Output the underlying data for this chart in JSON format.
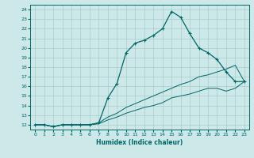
{
  "xlabel": "Humidex (Indice chaleur)",
  "bg_color": "#cce8e8",
  "line_color": "#006666",
  "grid_color": "#aacccc",
  "xlim": [
    -0.5,
    23.5
  ],
  "ylim": [
    11.5,
    24.5
  ],
  "xticks": [
    0,
    1,
    2,
    3,
    4,
    5,
    6,
    7,
    8,
    9,
    10,
    11,
    12,
    13,
    14,
    15,
    16,
    17,
    18,
    19,
    20,
    21,
    22,
    23
  ],
  "yticks": [
    12,
    13,
    14,
    15,
    16,
    17,
    18,
    19,
    20,
    21,
    22,
    23,
    24
  ],
  "line1_x": [
    0,
    1,
    2,
    3,
    4,
    5,
    6,
    7,
    8,
    9,
    10,
    11,
    12,
    13,
    14,
    15,
    16,
    17,
    18,
    19,
    20,
    21,
    22,
    23
  ],
  "line1_y": [
    12,
    12,
    11.8,
    12,
    12,
    12,
    12,
    12.2,
    14.8,
    16.3,
    19.5,
    20.5,
    20.8,
    21.3,
    22.0,
    23.8,
    23.2,
    21.5,
    20.0,
    19.5,
    18.8,
    17.5,
    16.5,
    16.5
  ],
  "line2_x": [
    0,
    1,
    2,
    3,
    4,
    5,
    6,
    7,
    8,
    9,
    10,
    11,
    12,
    13,
    14,
    15,
    16,
    17,
    18,
    19,
    20,
    21,
    22,
    23
  ],
  "line2_y": [
    12,
    12,
    11.8,
    12,
    12,
    12,
    12,
    12.2,
    12.8,
    13.2,
    13.8,
    14.2,
    14.6,
    15.0,
    15.4,
    15.8,
    16.2,
    16.5,
    17.0,
    17.2,
    17.5,
    17.8,
    18.2,
    16.5
  ],
  "line3_x": [
    0,
    1,
    2,
    3,
    4,
    5,
    6,
    7,
    8,
    9,
    10,
    11,
    12,
    13,
    14,
    15,
    16,
    17,
    18,
    19,
    20,
    21,
    22,
    23
  ],
  "line3_y": [
    12,
    12,
    11.8,
    12,
    12,
    12,
    12,
    12.1,
    12.5,
    12.8,
    13.2,
    13.5,
    13.8,
    14.0,
    14.3,
    14.8,
    15.0,
    15.2,
    15.5,
    15.8,
    15.8,
    15.5,
    15.8,
    16.5
  ]
}
